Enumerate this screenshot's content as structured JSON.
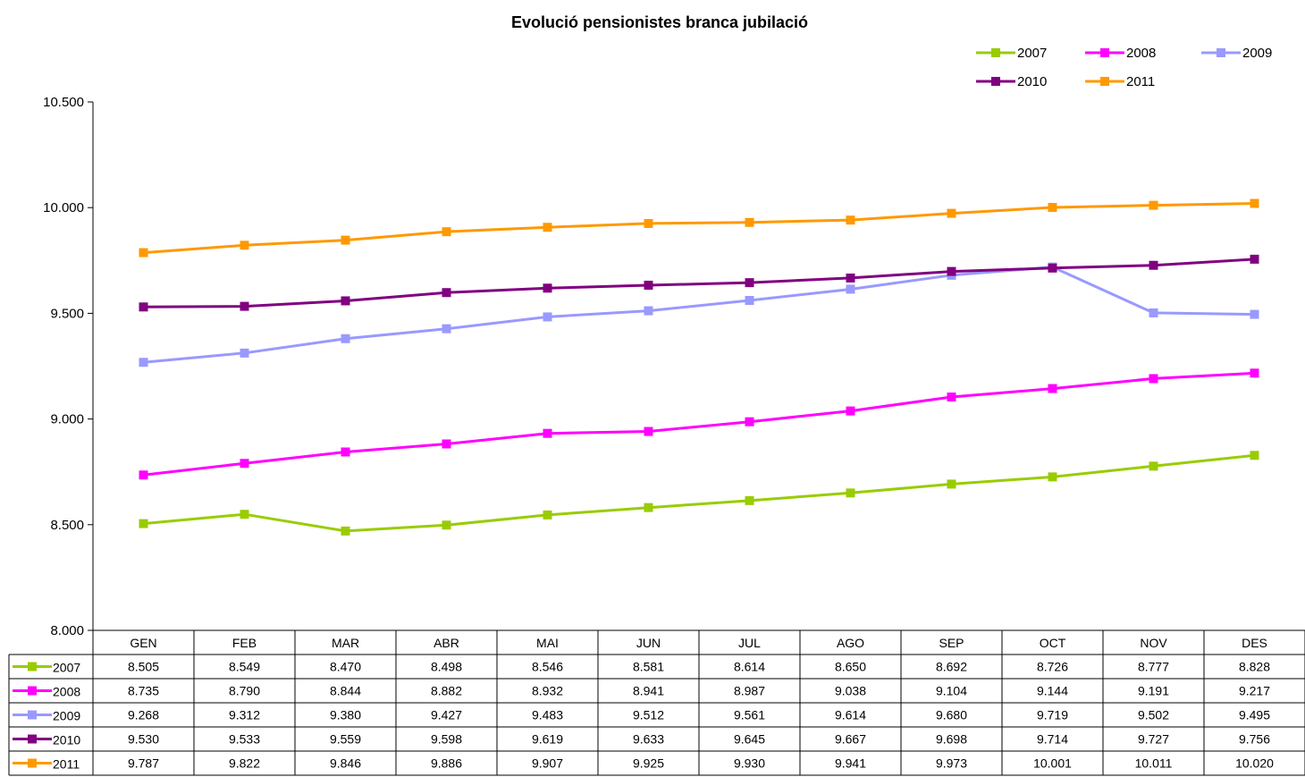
{
  "chart_data": {
    "type": "line",
    "title": "Evolució pensionistes branca jubilació",
    "xlabel": "",
    "ylabel": "",
    "categories": [
      "GEN",
      "FEB",
      "MAR",
      "ABR",
      "MAI",
      "JUN",
      "JUL",
      "AGO",
      "SEP",
      "OCT",
      "NOV",
      "DES"
    ],
    "ylim": [
      8000,
      10500
    ],
    "yticks": [
      8000,
      8500,
      9000,
      9500,
      10000,
      10500
    ],
    "ytick_labels": [
      "8.000",
      "8.500",
      "9.000",
      "9.500",
      "10.000",
      "10.500"
    ],
    "grid": false,
    "legend_position": "top-right",
    "data_table": true,
    "series": [
      {
        "name": "2007",
        "color": "#99cc00",
        "values": [
          8505,
          8549,
          8470,
          8498,
          8546,
          8581,
          8614,
          8650,
          8692,
          8726,
          8777,
          8828
        ],
        "labels": [
          "8.505",
          "8.549",
          "8.470",
          "8.498",
          "8.546",
          "8.581",
          "8.614",
          "8.650",
          "8.692",
          "8.726",
          "8.777",
          "8.828"
        ]
      },
      {
        "name": "2008",
        "color": "#ff00ff",
        "values": [
          8735,
          8790,
          8844,
          8882,
          8932,
          8941,
          8987,
          9038,
          9104,
          9144,
          9191,
          9217
        ],
        "labels": [
          "8.735",
          "8.790",
          "8.844",
          "8.882",
          "8.932",
          "8.941",
          "8.987",
          "9.038",
          "9.104",
          "9.144",
          "9.191",
          "9.217"
        ]
      },
      {
        "name": "2009",
        "color": "#9999ff",
        "values": [
          9268,
          9312,
          9380,
          9427,
          9483,
          9512,
          9561,
          9614,
          9680,
          9719,
          9502,
          9495
        ],
        "labels": [
          "9.268",
          "9.312",
          "9.380",
          "9.427",
          "9.483",
          "9.512",
          "9.561",
          "9.614",
          "9.680",
          "9.719",
          "9.502",
          "9.495"
        ]
      },
      {
        "name": "2010",
        "color": "#800080",
        "values": [
          9530,
          9533,
          9559,
          9598,
          9619,
          9633,
          9645,
          9667,
          9698,
          9714,
          9727,
          9756
        ],
        "labels": [
          "9.530",
          "9.533",
          "9.559",
          "9.598",
          "9.619",
          "9.633",
          "9.645",
          "9.667",
          "9.698",
          "9.714",
          "9.727",
          "9.756"
        ]
      },
      {
        "name": "2011",
        "color": "#ff9900",
        "values": [
          9787,
          9822,
          9846,
          9886,
          9907,
          9925,
          9930,
          9941,
          9973,
          10001,
          10011,
          10020
        ],
        "labels": [
          "9.787",
          "9.822",
          "9.846",
          "9.886",
          "9.907",
          "9.925",
          "9.930",
          "9.941",
          "9.973",
          "10.001",
          "10.011",
          "10.020"
        ]
      }
    ]
  }
}
